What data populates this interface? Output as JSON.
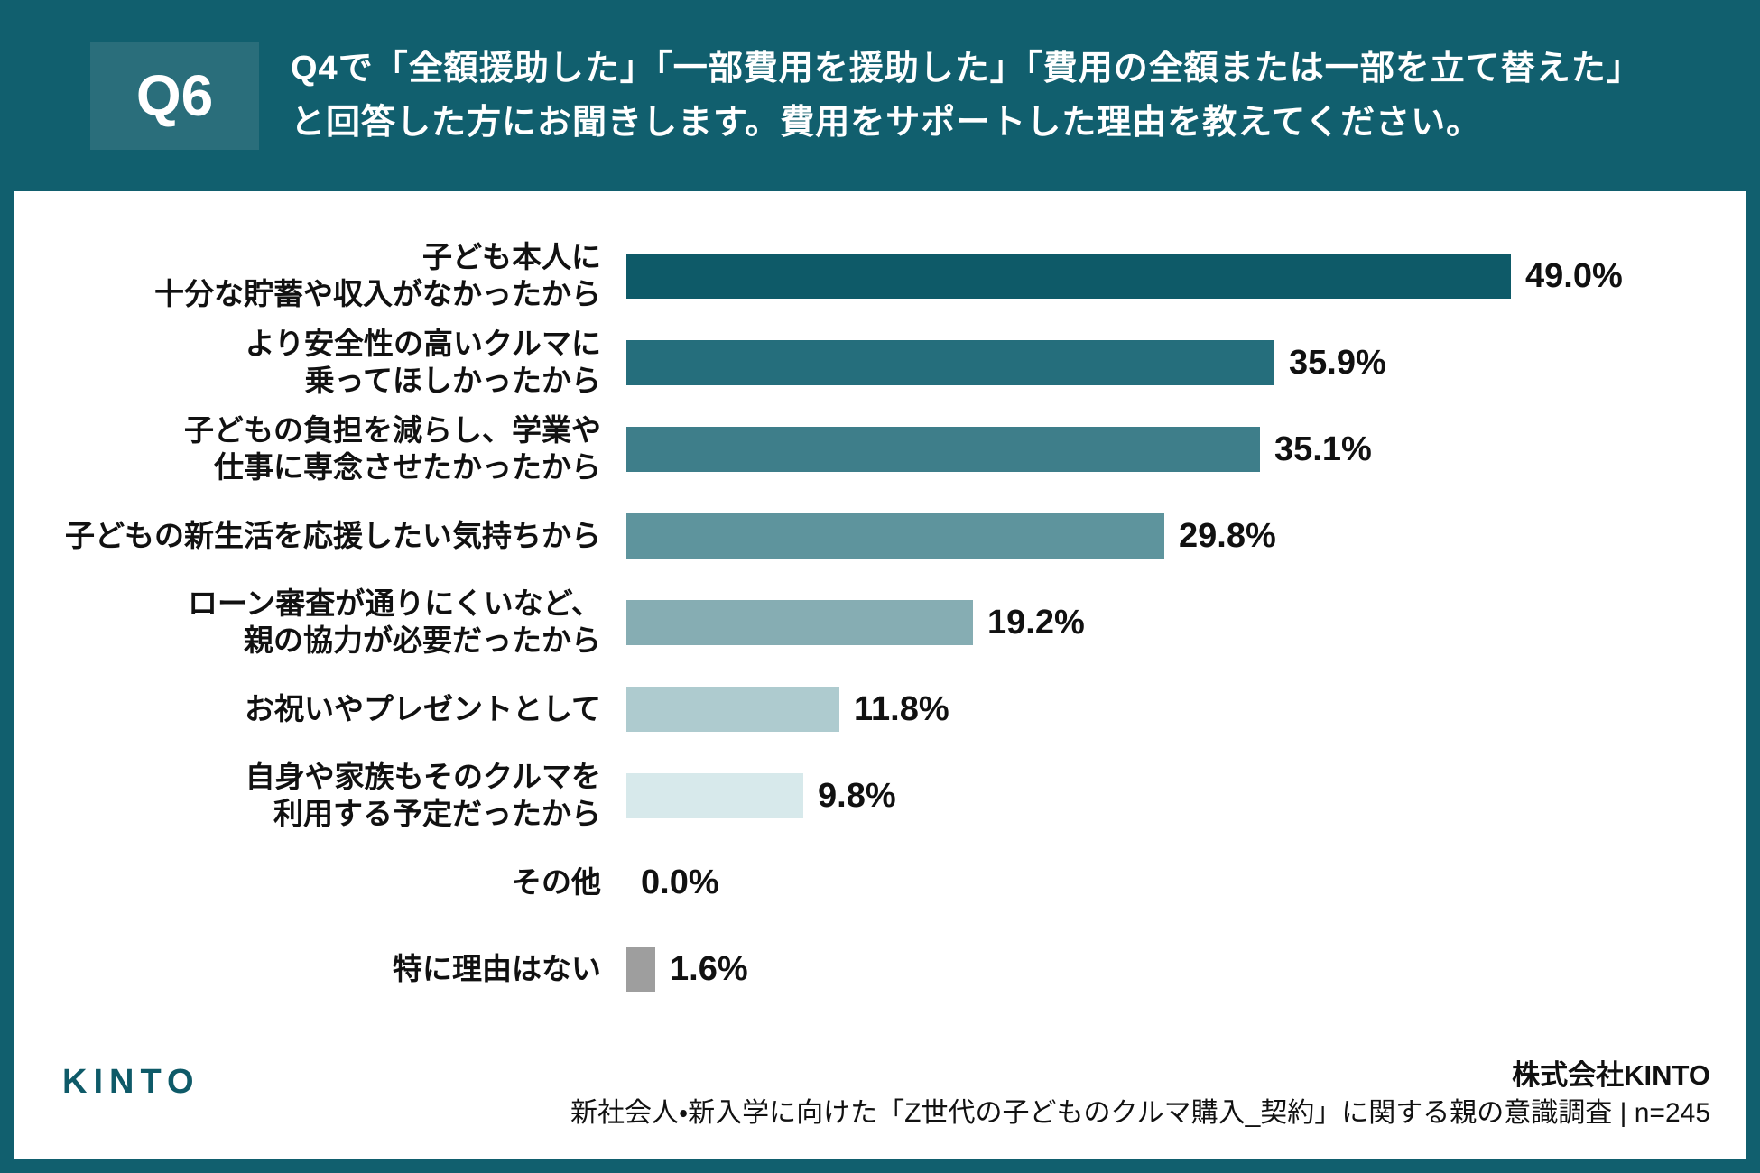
{
  "header": {
    "badge": "Q6",
    "title_line1": "Q4で「全額援助した」「一部費用を援助した」「費用の全額または一部を立て替えた」",
    "title_line2": "と回答した方にお聞きします。費用をサポートした理由を教えてください。"
  },
  "chart_data": {
    "type": "bar",
    "orientation": "horizontal",
    "title": "Q4で「全額援助した」「一部費用を援助した」「費用の全額または一部を立て替えた」と回答した方にお聞きします。費用をサポートした理由を教えてください。",
    "unit": "%",
    "xlim": [
      0,
      50
    ],
    "grid": false,
    "legend": false,
    "categories": [
      "子ども本人に十分な貯蓄や収入がなかったから",
      "より安全性の高いクルマに乗ってほしかったから",
      "子どもの負担を減らし、学業や仕事に専念させたかったから",
      "子どもの新生活を応援したい気持ちから",
      "ローン審査が通りにくいなど、親の協力が必要だったから",
      "お祝いやプレゼントとして",
      "自身や家族もそのクルマを利用する予定だったから",
      "その他",
      "特に理由はない"
    ],
    "values": [
      49.0,
      35.9,
      35.1,
      29.8,
      19.2,
      11.8,
      9.8,
      0.0,
      1.6
    ],
    "rows": [
      {
        "label_line1": "子ども本人に",
        "label_line2": "十分な貯蓄や収入がなかったから",
        "value": 49.0,
        "value_label": "49.0%",
        "color": "#0e5a68"
      },
      {
        "label_line1": "より安全性の高いクルマに",
        "label_line2": "乗ってほしかったから",
        "value": 35.9,
        "value_label": "35.9%",
        "color": "#256e7c"
      },
      {
        "label_line1": "子どもの負担を減らし、学業や",
        "label_line2": "仕事に専念させたかったから",
        "value": 35.1,
        "value_label": "35.1%",
        "color": "#3e7e8a"
      },
      {
        "label_line1": "子どもの新生活を応援したい気持ちから",
        "label_line2": "",
        "value": 29.8,
        "value_label": "29.8%",
        "color": "#5e949d"
      },
      {
        "label_line1": "ローン審査が通りにくいなど、",
        "label_line2": "親の協力が必要だったから",
        "value": 19.2,
        "value_label": "19.2%",
        "color": "#86adb3"
      },
      {
        "label_line1": "お祝いやプレゼントとして",
        "label_line2": "",
        "value": 11.8,
        "value_label": "11.8%",
        "color": "#aecbcf"
      },
      {
        "label_line1": "自身や家族もそのクルマを",
        "label_line2": "利用する予定だったから",
        "value": 9.8,
        "value_label": "9.8%",
        "color": "#d7e9eb"
      },
      {
        "label_line1": "その他",
        "label_line2": "",
        "value": 0.0,
        "value_label": "0.0%",
        "color": "transparent"
      },
      {
        "label_line1": "特に理由はない",
        "label_line2": "",
        "value": 1.6,
        "value_label": "1.6%",
        "color": "#9e9e9e"
      }
    ]
  },
  "footer": {
    "logo_text": "KINTO",
    "company": "株式会社KINTO",
    "caption": "新社会人・新入学に向けた「Z世代の子どものクルマ購入_契約」に関する親の意識調査 | n=245"
  },
  "colors": {
    "frame_teal": "#115f6e",
    "badge_bg": "#2a6e7b",
    "bar_darkest": "#0e5a68",
    "bar_lightest": "#d7e9eb",
    "other_gray": "#9e9e9e",
    "logo_teal": "#0e5a68"
  }
}
